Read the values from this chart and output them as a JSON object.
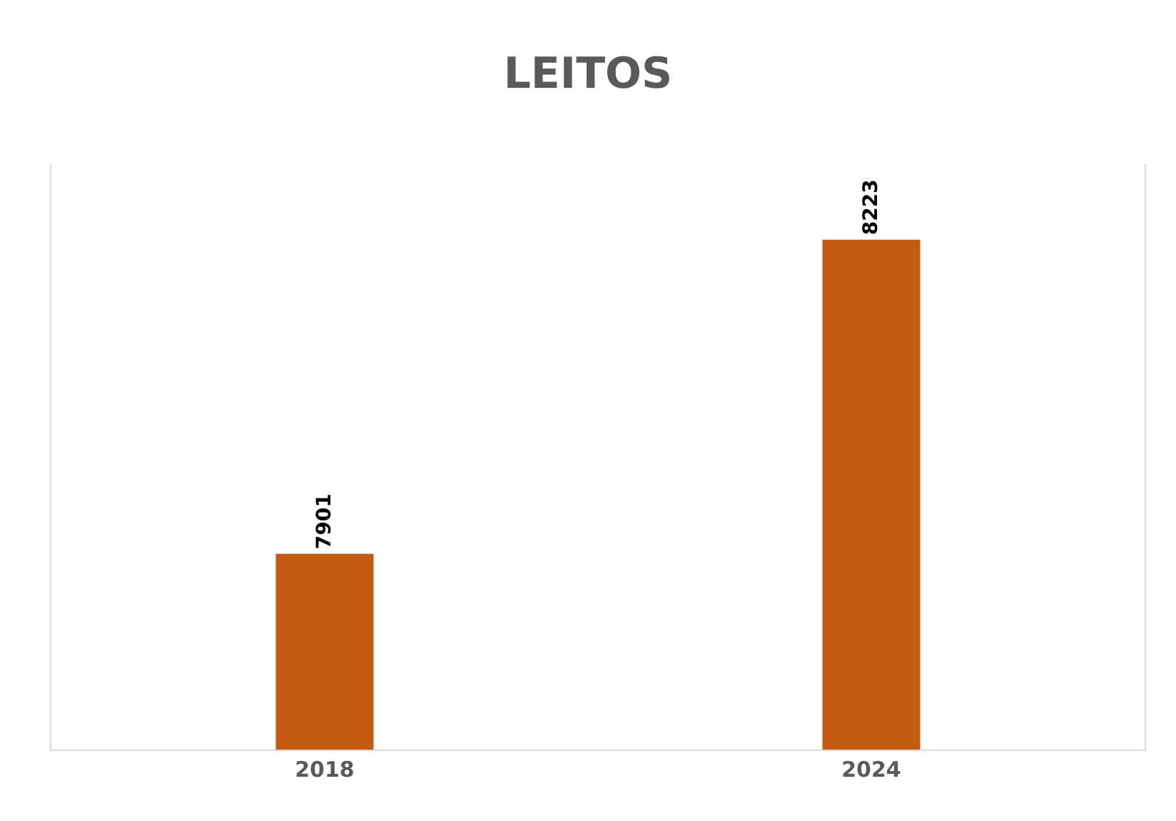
{
  "chart_data": {
    "type": "bar",
    "title": "LEITOS",
    "categories": [
      "2018",
      "2024"
    ],
    "values": [
      7901,
      8223
    ],
    "color": "#c55a11",
    "ylim": [
      7700,
      8300
    ],
    "tick_labels": "x",
    "data_labels": true
  }
}
